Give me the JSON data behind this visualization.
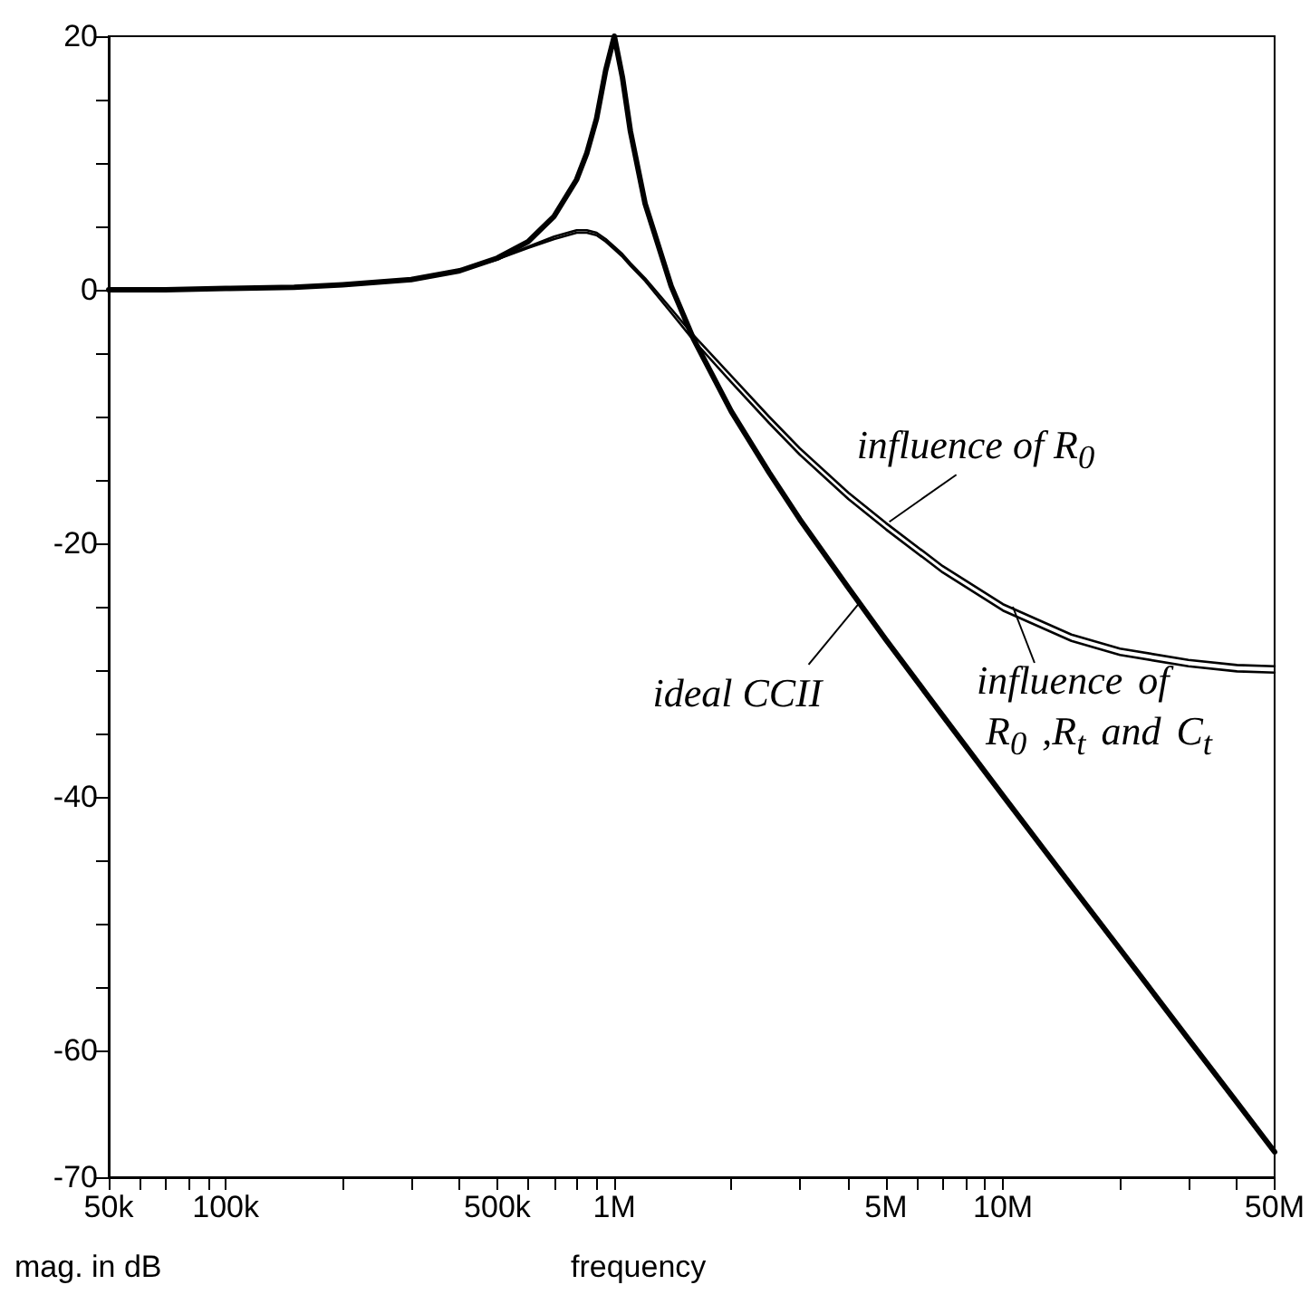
{
  "chart_data": {
    "type": "line",
    "xlabel": "frequency",
    "ylabel": "mag. in dB",
    "log": "x",
    "grid": false,
    "marker": "none",
    "line_style": "solid",
    "xlim": [
      50000,
      50000000
    ],
    "ylim": [
      -70,
      20
    ],
    "xticks": [
      {
        "value": 50000,
        "label": "50k"
      },
      {
        "value": 60000,
        "label": null
      },
      {
        "value": 70000,
        "label": null
      },
      {
        "value": 80000,
        "label": null
      },
      {
        "value": 90000,
        "label": null
      },
      {
        "value": 100000,
        "label": "100k"
      },
      {
        "value": 200000,
        "label": null
      },
      {
        "value": 300000,
        "label": null
      },
      {
        "value": 400000,
        "label": null
      },
      {
        "value": 500000,
        "label": "500k"
      },
      {
        "value": 600000,
        "label": null
      },
      {
        "value": 700000,
        "label": null
      },
      {
        "value": 800000,
        "label": null
      },
      {
        "value": 900000,
        "label": null
      },
      {
        "value": 1000000,
        "label": "1M"
      },
      {
        "value": 2000000,
        "label": null
      },
      {
        "value": 3000000,
        "label": null
      },
      {
        "value": 4000000,
        "label": null
      },
      {
        "value": 5000000,
        "label": "5M"
      },
      {
        "value": 6000000,
        "label": null
      },
      {
        "value": 7000000,
        "label": null
      },
      {
        "value": 8000000,
        "label": null
      },
      {
        "value": 9000000,
        "label": null
      },
      {
        "value": 10000000,
        "label": "10M"
      },
      {
        "value": 20000000,
        "label": null
      },
      {
        "value": 30000000,
        "label": null
      },
      {
        "value": 40000000,
        "label": null
      },
      {
        "value": 50000000,
        "label": "50M"
      }
    ],
    "yticks": [
      -70,
      -60,
      {
        "value": -55,
        "label": null
      },
      {
        "value": -50,
        "label": null
      },
      {
        "value": -45,
        "label": null
      },
      -40,
      {
        "value": -35,
        "label": null
      },
      {
        "value": -30,
        "label": null
      },
      {
        "value": -25,
        "label": null
      },
      -20,
      {
        "value": -15,
        "label": null
      },
      {
        "value": -10,
        "label": null
      },
      {
        "value": -5,
        "label": null
      },
      0,
      {
        "value": 5,
        "label": null
      },
      {
        "value": 10,
        "label": null
      },
      {
        "value": 15,
        "label": null
      },
      20
    ],
    "x": [
      50000,
      70000,
      100000,
      150000,
      200000,
      300000,
      400000,
      500000,
      600000,
      700000,
      800000,
      850000,
      900000,
      950000,
      1000000,
      1050000,
      1100000,
      1200000,
      1400000,
      1600000,
      2000000,
      2500000,
      3000000,
      4000000,
      5000000,
      7000000,
      10000000,
      15000000,
      20000000,
      30000000,
      40000000,
      50000000
    ],
    "series": [
      {
        "color": "#000000",
        "values": [
          0,
          0,
          0.1,
          0.2,
          0.4,
          0.8,
          1.5,
          2.5,
          3.8,
          5.8,
          8.7,
          10.8,
          13.5,
          17.3,
          20,
          16.7,
          12.5,
          6.8,
          0.3,
          -3.9,
          -9.6,
          -14.4,
          -18.1,
          -23.5,
          -27.6,
          -33.6,
          -39.9,
          -47.0,
          -52.0,
          -59.1,
          -64.1,
          -68.0
        ]
      },
      {
        "color": "#000000",
        "values": [
          0,
          0,
          0.1,
          0.2,
          0.4,
          0.8,
          1.5,
          2.4,
          3.4,
          4.2,
          4.7,
          4.7,
          4.5,
          4.0,
          3.4,
          2.8,
          2.1,
          0.9,
          -1.5,
          -3.6,
          -6.8,
          -10.0,
          -12.5,
          -16.0,
          -18.4,
          -21.8,
          -24.8,
          -27.2,
          -28.3,
          -29.2,
          -29.6,
          -29.7
        ]
      },
      {
        "color": "#000000",
        "values": [
          0,
          0,
          0.1,
          0.2,
          0.4,
          0.8,
          1.5,
          2.4,
          3.3,
          4.0,
          4.5,
          4.5,
          4.3,
          3.8,
          3.2,
          2.6,
          1.9,
          0.7,
          -1.8,
          -4.0,
          -7.3,
          -10.5,
          -13.0,
          -16.5,
          -18.9,
          -22.3,
          -25.3,
          -27.7,
          -28.8,
          -29.7,
          -30.1,
          -30.2
        ]
      }
    ],
    "annotations": [
      {
        "text": "ideal CCII",
        "x": 4270000,
        "y": -24.7
      },
      {
        "text": "influence of R$_{0}$",
        "x": 5100000,
        "y": -18.3
      },
      {
        "text": "influence of R$_{0}$ ,R$_{t}$ and C$_{t}$",
        "x": 10600000,
        "y": -25.0
      }
    ]
  }
}
